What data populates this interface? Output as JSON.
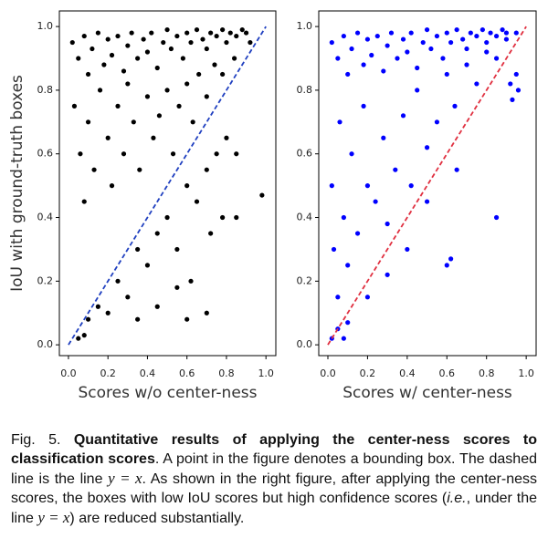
{
  "chart_data": [
    {
      "type": "scatter",
      "xlabel": "Scores w/o center-ness",
      "ylabel": "IoU with ground-truth boxes",
      "color": "#000000",
      "reference_line": {
        "x": [
          0,
          1
        ],
        "y": [
          0,
          1
        ],
        "color": "#2040c0",
        "style": "dashed"
      },
      "xlim": [
        -0.046,
        1.05
      ],
      "ylim": [
        -0.034,
        1.049
      ],
      "xticks": [
        {
          "value": 0,
          "label": "0.0"
        },
        0.2,
        0.4,
        0.6,
        0.8,
        {
          "value": 1,
          "label": "1.0"
        }
      ],
      "yticks": [
        {
          "value": 0,
          "label": "0.0"
        },
        0.2,
        0.4,
        0.6,
        0.8,
        {
          "value": 1,
          "label": "1.0"
        }
      ],
      "x": [
        0.02,
        0.05,
        0.08,
        0.1,
        0.12,
        0.15,
        0.18,
        0.2,
        0.22,
        0.25,
        0.28,
        0.3,
        0.32,
        0.35,
        0.38,
        0.4,
        0.42,
        0.45,
        0.48,
        0.5,
        0.52,
        0.55,
        0.58,
        0.6,
        0.62,
        0.65,
        0.68,
        0.7,
        0.72,
        0.75,
        0.78,
        0.8,
        0.82,
        0.85,
        0.88,
        0.9,
        0.03,
        0.06,
        0.08,
        0.1,
        0.13,
        0.16,
        0.2,
        0.22,
        0.25,
        0.28,
        0.3,
        0.33,
        0.36,
        0.4,
        0.43,
        0.46,
        0.5,
        0.53,
        0.56,
        0.6,
        0.63,
        0.66,
        0.7,
        0.74,
        0.78,
        0.84,
        0.92,
        0.05,
        0.08,
        0.1,
        0.15,
        0.2,
        0.25,
        0.3,
        0.35,
        0.4,
        0.45,
        0.5,
        0.55,
        0.6,
        0.62,
        0.65,
        0.7,
        0.72,
        0.75,
        0.8,
        0.85,
        0.98,
        0.6,
        0.7,
        0.45,
        0.35,
        0.78,
        0.85,
        0.55
      ],
      "values": [
        0.95,
        0.9,
        0.97,
        0.85,
        0.93,
        0.98,
        0.88,
        0.96,
        0.91,
        0.97,
        0.86,
        0.94,
        0.98,
        0.9,
        0.96,
        0.92,
        0.98,
        0.87,
        0.95,
        0.99,
        0.93,
        0.97,
        0.9,
        0.98,
        0.95,
        0.99,
        0.96,
        0.93,
        0.98,
        0.97,
        0.99,
        0.95,
        0.98,
        0.97,
        0.99,
        0.98,
        0.75,
        0.6,
        0.45,
        0.7,
        0.55,
        0.8,
        0.65,
        0.5,
        0.75,
        0.6,
        0.82,
        0.7,
        0.55,
        0.78,
        0.65,
        0.72,
        0.8,
        0.6,
        0.75,
        0.82,
        0.7,
        0.85,
        0.78,
        0.88,
        0.85,
        0.9,
        0.95,
        0.02,
        0.03,
        0.08,
        0.12,
        0.1,
        0.2,
        0.15,
        0.3,
        0.25,
        0.35,
        0.4,
        0.3,
        0.5,
        0.2,
        0.45,
        0.55,
        0.35,
        0.6,
        0.65,
        0.6,
        0.47,
        0.08,
        0.1,
        0.12,
        0.08,
        0.4,
        0.4,
        0.18
      ]
    },
    {
      "type": "scatter",
      "xlabel": "Scores w/ center-ness",
      "color": "#0000ff",
      "reference_line": {
        "x": [
          0,
          1
        ],
        "y": [
          0,
          1
        ],
        "color": "#e03040",
        "style": "dashed"
      },
      "xlim": [
        -0.046,
        1.05
      ],
      "ylim": [
        -0.034,
        1.049
      ],
      "xticks": [
        {
          "value": 0,
          "label": "0.0"
        },
        0.2,
        0.4,
        0.6,
        0.8,
        {
          "value": 1,
          "label": "1.0"
        }
      ],
      "yticks": [
        {
          "value": 0,
          "label": "0.0"
        },
        0.2,
        0.4,
        0.6,
        0.8,
        {
          "value": 1,
          "label": "1.0"
        }
      ],
      "x": [
        0.02,
        0.05,
        0.08,
        0.1,
        0.12,
        0.15,
        0.18,
        0.2,
        0.22,
        0.25,
        0.28,
        0.3,
        0.32,
        0.35,
        0.38,
        0.4,
        0.42,
        0.45,
        0.48,
        0.5,
        0.52,
        0.55,
        0.58,
        0.6,
        0.62,
        0.65,
        0.68,
        0.7,
        0.72,
        0.75,
        0.78,
        0.8,
        0.82,
        0.85,
        0.88,
        0.9,
        0.02,
        0.03,
        0.05,
        0.06,
        0.08,
        0.1,
        0.12,
        0.15,
        0.18,
        0.2,
        0.24,
        0.28,
        0.3,
        0.34,
        0.38,
        0.42,
        0.45,
        0.5,
        0.55,
        0.6,
        0.64,
        0.7,
        0.75,
        0.8,
        0.85,
        0.9,
        0.95,
        0.02,
        0.05,
        0.08,
        0.1,
        0.2,
        0.3,
        0.4,
        0.5,
        0.6,
        0.62,
        0.65,
        0.85,
        0.92,
        0.95,
        0.96,
        0.93
      ],
      "values": [
        0.95,
        0.9,
        0.97,
        0.85,
        0.93,
        0.98,
        0.88,
        0.96,
        0.91,
        0.97,
        0.86,
        0.94,
        0.98,
        0.9,
        0.96,
        0.92,
        0.98,
        0.87,
        0.95,
        0.99,
        0.93,
        0.97,
        0.9,
        0.98,
        0.95,
        0.99,
        0.96,
        0.93,
        0.98,
        0.97,
        0.99,
        0.95,
        0.98,
        0.97,
        0.99,
        0.98,
        0.5,
        0.3,
        0.15,
        0.7,
        0.4,
        0.25,
        0.6,
        0.35,
        0.75,
        0.5,
        0.45,
        0.65,
        0.38,
        0.55,
        0.72,
        0.5,
        0.8,
        0.62,
        0.7,
        0.85,
        0.75,
        0.88,
        0.82,
        0.92,
        0.9,
        0.96,
        0.98,
        0.02,
        0.05,
        0.02,
        0.07,
        0.15,
        0.22,
        0.3,
        0.45,
        0.25,
        0.27,
        0.55,
        0.4,
        0.82,
        0.85,
        0.8,
        0.77
      ]
    }
  ],
  "caption": [
    {
      "text": "Fig. 5. "
    },
    {
      "text": "Quantitative results of applying the center-ness scores to classification scores",
      "style": "bold"
    },
    {
      "text": ". A point in the figure denotes a bounding box. The dashed line is the line "
    },
    {
      "text": "y = x",
      "style": "math"
    },
    {
      "text": ". As shown in the right figure, after applying the center-ness scores, the boxes with low IoU scores but high confidence scores ("
    },
    {
      "text": "i.e.",
      "style": "italic"
    },
    {
      "text": ", under the line "
    },
    {
      "text": "y = x",
      "style": "math"
    },
    {
      "text": ") are reduced substantially."
    }
  ]
}
